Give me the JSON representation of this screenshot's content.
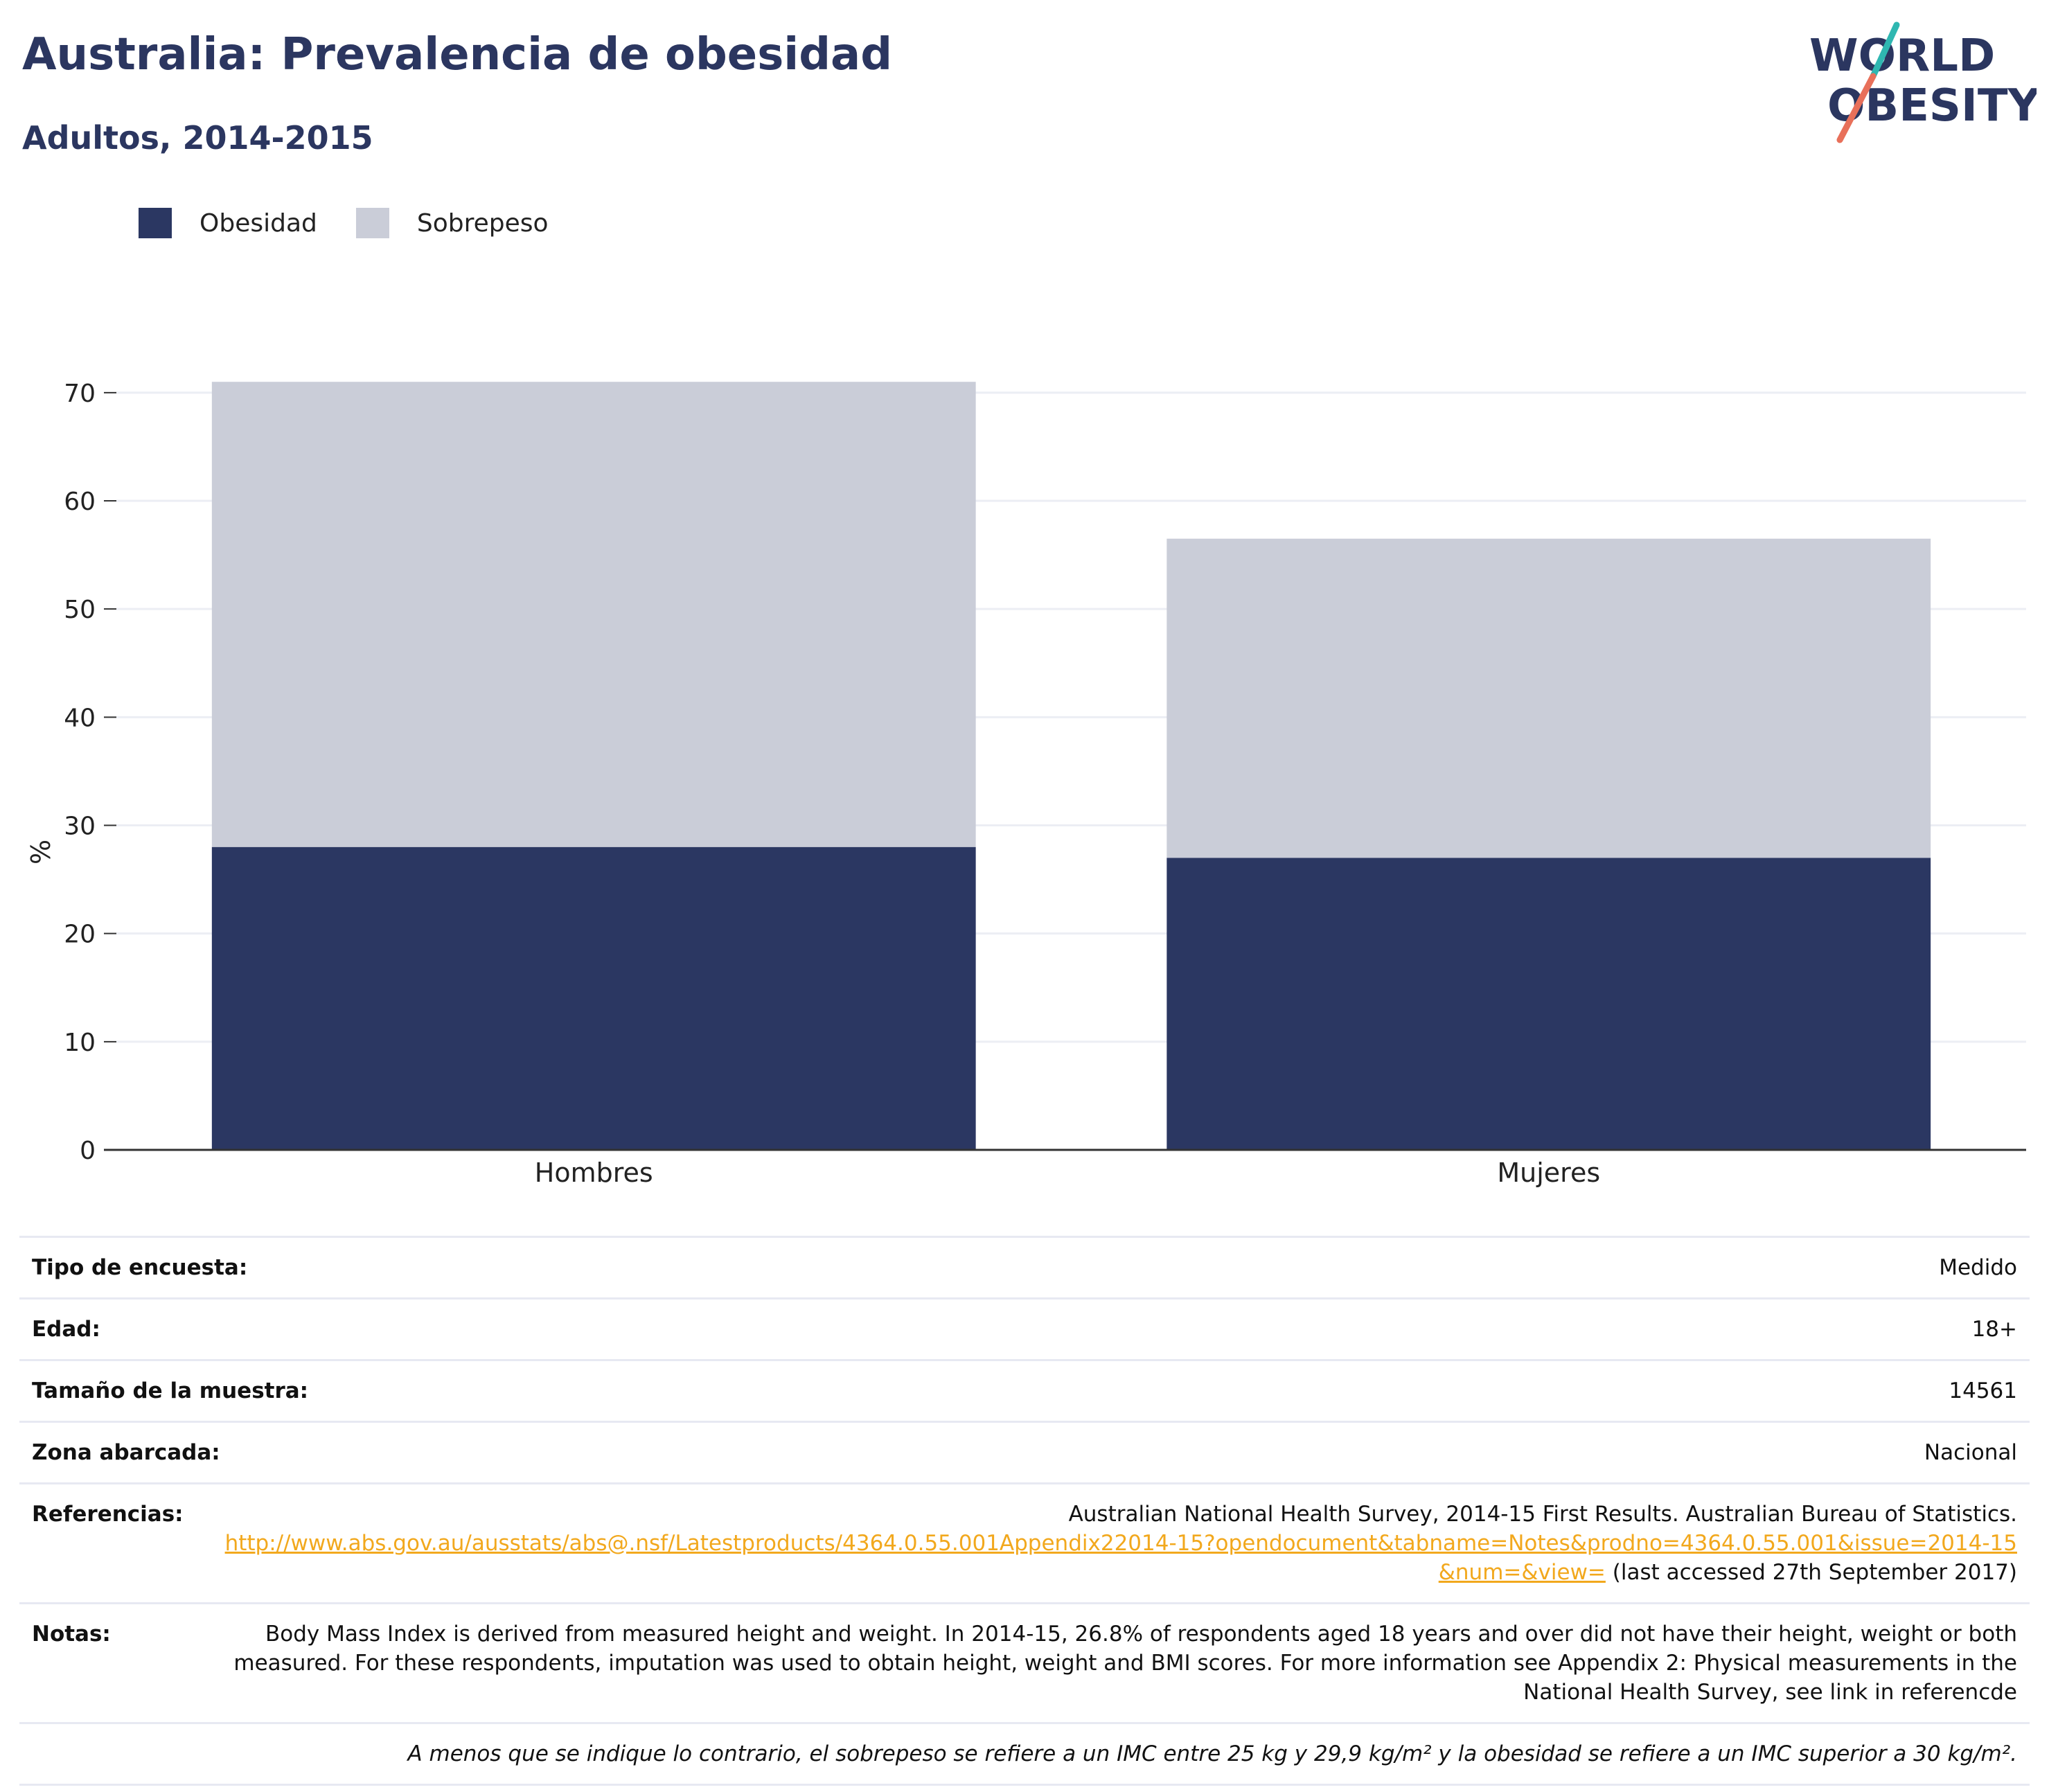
{
  "header": {
    "title": "Australia: Prevalencia de obesidad",
    "subtitle": "Adultos, 2014-2015"
  },
  "logo": {
    "line1": "WORLD",
    "line2": "OBESITY",
    "colors": {
      "text": "#2b3660",
      "slash_top": "#2fb7b1",
      "slash_bottom": "#e8705a"
    }
  },
  "legend": [
    {
      "label": "Obesidad",
      "color": "#2b3762"
    },
    {
      "label": "Sobrepeso",
      "color": "#cacdd8"
    }
  ],
  "chart_data": {
    "type": "bar",
    "stacked": true,
    "categories": [
      "Hombres",
      "Mujeres"
    ],
    "series": [
      {
        "name": "Obesidad",
        "values": [
          28.0,
          27.0
        ],
        "color": "#2b3762"
      },
      {
        "name": "Sobrepeso",
        "values": [
          43.0,
          29.5
        ],
        "color": "#cacdd8"
      }
    ],
    "ylabel": "%",
    "xlabel": "",
    "ylim": [
      0,
      73
    ],
    "yticks": [
      0,
      10,
      20,
      30,
      40,
      50,
      60,
      70
    ],
    "grid": true,
    "legend_position": "top-left"
  },
  "table": {
    "rows": [
      {
        "label": "Tipo de encuesta:",
        "value": "Medido"
      },
      {
        "label": "Edad:",
        "value": "18+"
      },
      {
        "label": "Tamaño de la muestra:",
        "value": "14561"
      },
      {
        "label": "Zona abarcada:",
        "value": "Nacional"
      }
    ],
    "references": {
      "label": "Referencias:",
      "text": "Australian National Health Survey, 2014-15 First Results. Australian Bureau of Statistics.",
      "link": "http://www.abs.gov.au/ausstats/abs@.nsf/Latestproducts/4364.0.55.001Appendix22014-15?opendocument&tabname=Notes&prodno=4364.0.55.001&issue=2014-15&num=&view=",
      "suffix": "(last accessed 27th September 2017)"
    },
    "notes": {
      "label": "Notas:",
      "text": "Body Mass Index is derived from measured height and weight. In 2014-15, 26.8% of respondents aged 18 years and over did not have their height, weight or both measured. For these respondents, imputation was used to obtain height, weight and BMI scores. For more information see Appendix 2: Physical measurements in the National Health Survey, see link in referencde"
    },
    "footnote": "A menos que se indique lo contrario, el sobrepeso se refiere a un IMC entre 25 kg y 29,9 kg/m² y la obesidad se refiere a un IMC superior a 30 kg/m²."
  }
}
